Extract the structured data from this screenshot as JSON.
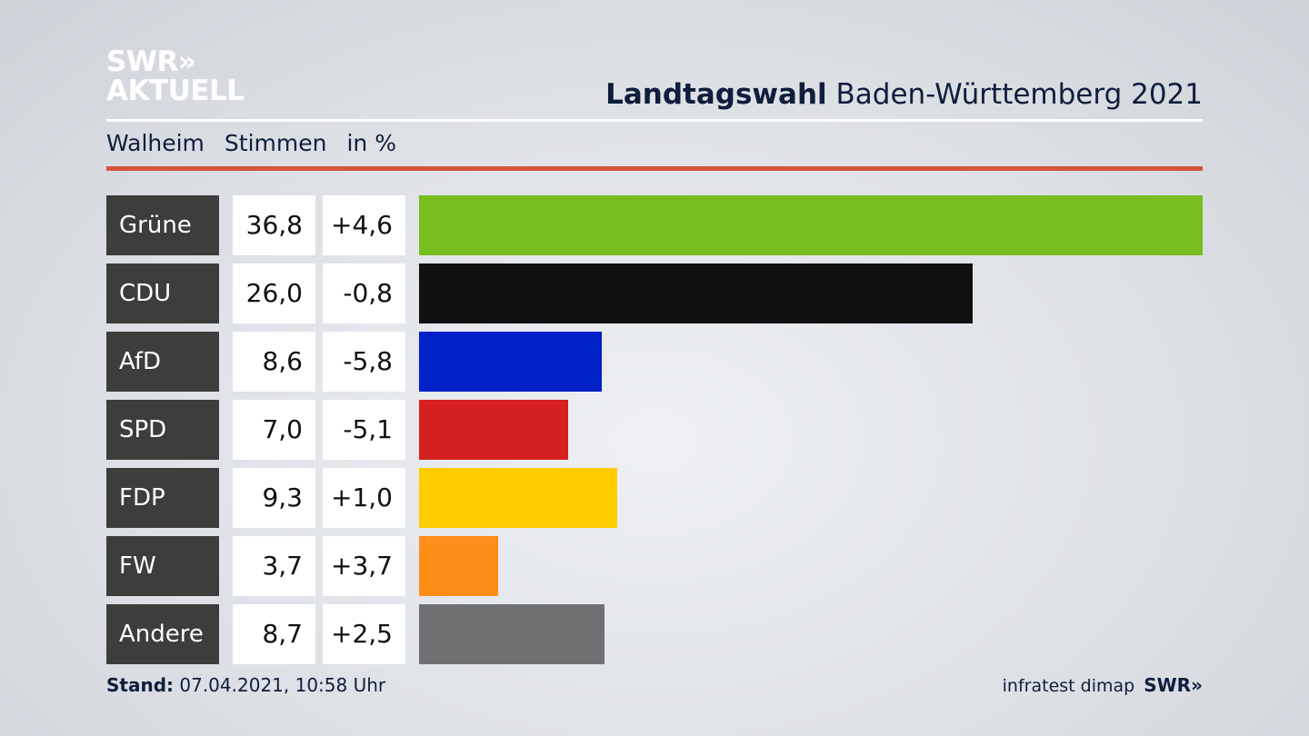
{
  "logo": {
    "line1": "SWR»",
    "line2": "AKTUELL"
  },
  "header": {
    "title_bold": "Landtagswahl",
    "title_rest": "Baden-Württemberg 2021"
  },
  "subheader": {
    "place": "Walheim",
    "metric": "Stimmen",
    "unit": "in %"
  },
  "footer": {
    "stand_label": "Stand:",
    "stand_value": "07.04.2021, 10:58 Uhr",
    "source": "infratest dimap",
    "brand": "SWR»"
  },
  "chart_data": {
    "type": "bar",
    "orientation": "horizontal",
    "xlim": [
      0,
      36.8
    ],
    "categories": [
      "Grüne",
      "CDU",
      "AfD",
      "SPD",
      "FDP",
      "FW",
      "Andere"
    ],
    "values": [
      36.8,
      26.0,
      8.6,
      7.0,
      9.3,
      3.7,
      8.7
    ],
    "value_labels": [
      "36,8",
      "26,0",
      "8,6",
      "7,0",
      "9,3",
      "3,7",
      "8,7"
    ],
    "change_labels": [
      "+4,6",
      "-0,8",
      "-5,8",
      "-5,1",
      "+1,0",
      "+3,7",
      "+2,5"
    ],
    "changes": [
      4.6,
      -0.8,
      -5.8,
      -5.1,
      1.0,
      3.7,
      2.5
    ],
    "colors": [
      "#78be1e",
      "#111111",
      "#0021c8",
      "#d51f20",
      "#ffcc00",
      "#ff8d1a",
      "#6f7072"
    ]
  }
}
